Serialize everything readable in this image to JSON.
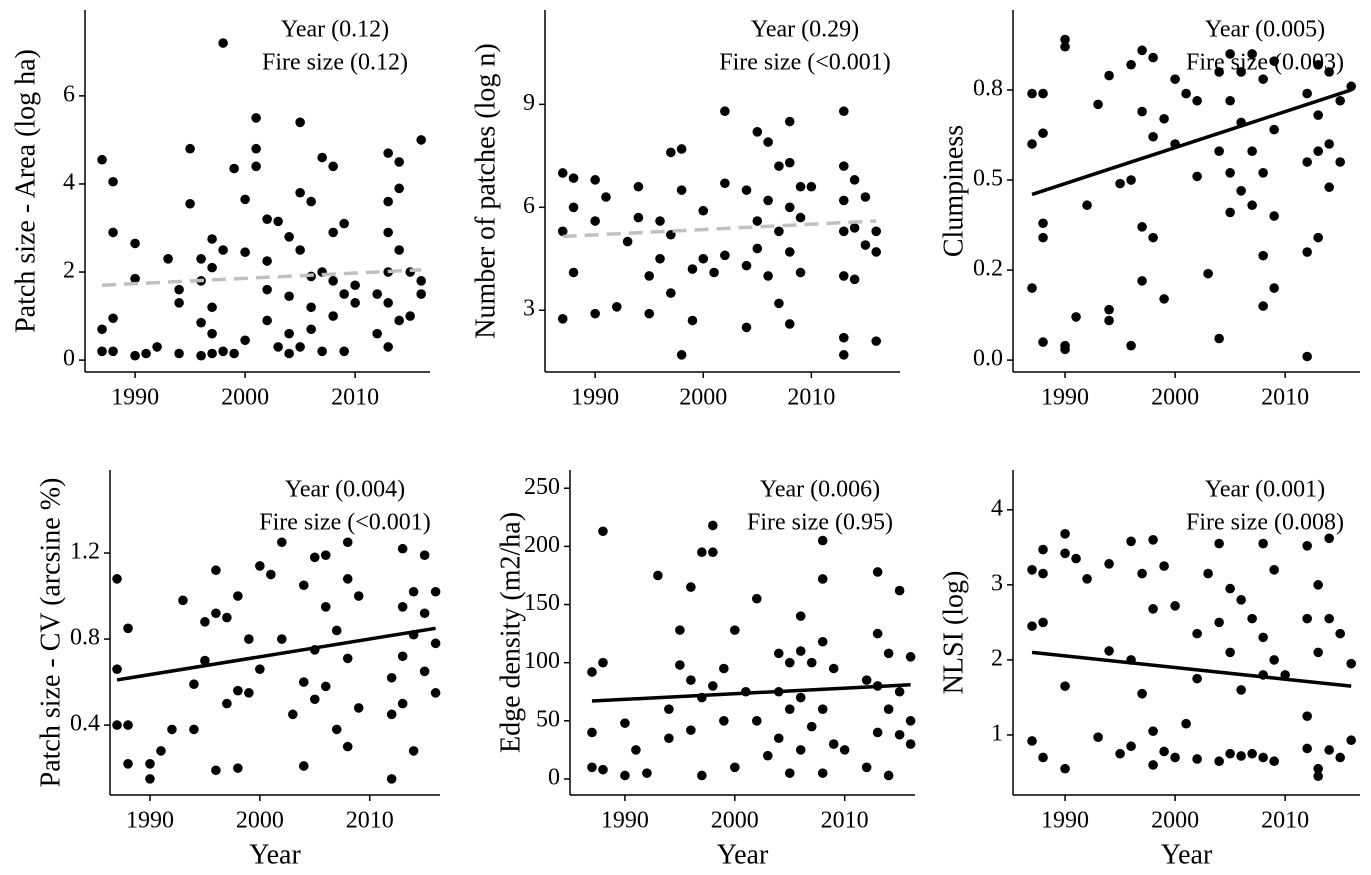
{
  "chart_data": [
    {
      "type": "scatter",
      "ylabel": "Patch size - Area (log ha)",
      "annotations": [
        "Year (0.12)",
        "Fire size (0.12)"
      ],
      "xlim": [
        1985.45,
        2016.8
      ],
      "ylim": [
        -0.27,
        7.95
      ],
      "xticks": [
        1990,
        2000,
        2010
      ],
      "yticks": [
        0,
        2,
        4,
        6
      ],
      "x": [
        1987,
        1987,
        1987,
        1988,
        1988,
        1988,
        1988,
        1990,
        1990,
        1990,
        1991,
        1992,
        1993,
        1994,
        1994,
        1994,
        1995,
        1995,
        1996,
        1996,
        1996,
        1996,
        1997,
        1997,
        1997,
        1997,
        1997,
        1998,
        1998,
        1998,
        1999,
        1999,
        2000,
        2000,
        2000,
        2001,
        2001,
        2001,
        2002,
        2002,
        2002,
        2002,
        2003,
        2003,
        2004,
        2004,
        2004,
        2004,
        2005,
        2005,
        2005,
        2005,
        2006,
        2006,
        2006,
        2006,
        2007,
        2007,
        2007,
        2008,
        2008,
        2008,
        2008,
        2009,
        2009,
        2009,
        2010,
        2010,
        2012,
        2012,
        2013,
        2013,
        2013,
        2013,
        2013,
        2013,
        2014,
        2014,
        2014,
        2014,
        2015,
        2015,
        2016,
        2016,
        2016
      ],
      "series": [
        {
          "color": "#000000",
          "values": [
            4.55,
            0.7,
            0.2,
            4.05,
            2.9,
            0.95,
            0.2,
            2.65,
            1.85,
            0.1,
            0.15,
            0.3,
            2.3,
            1.6,
            1.3,
            0.15,
            4.8,
            3.55,
            2.3,
            1.8,
            0.85,
            0.1,
            2.75,
            2.1,
            1.2,
            0.6,
            0.15,
            7.2,
            2.5,
            0.2,
            4.35,
            0.15,
            3.65,
            2.45,
            0.45,
            5.5,
            4.8,
            4.4,
            3.2,
            2.25,
            1.6,
            0.9,
            3.15,
            0.3,
            2.8,
            1.45,
            0.6,
            0.15,
            5.4,
            3.8,
            2.5,
            0.3,
            3.6,
            1.9,
            1.2,
            0.7,
            4.6,
            2.0,
            0.2,
            4.4,
            2.9,
            1.8,
            1.0,
            3.1,
            1.5,
            0.2,
            1.7,
            1.3,
            1.5,
            0.6,
            4.7,
            3.6,
            2.9,
            2.0,
            1.3,
            0.3,
            4.5,
            3.9,
            2.5,
            0.9,
            2.0,
            1.0,
            5.0,
            1.8,
            1.5
          ]
        }
      ],
      "trend": {
        "x": [
          1987,
          2016
        ],
        "values": [
          1.7,
          2.05
        ],
        "color": "#c0c0c0",
        "dashed": true
      }
    },
    {
      "type": "scatter",
      "ylabel": "Number of patches (log n)",
      "annotations": [
        "Year (0.29)",
        "Fire size (<0.001)"
      ],
      "xlim": [
        1985.36,
        2018.2
      ],
      "ylim": [
        1.2,
        11.75
      ],
      "xticks": [
        1990,
        2000,
        2010
      ],
      "yticks": [
        3,
        6,
        9
      ],
      "x": [
        1987,
        1987,
        1987,
        1988,
        1988,
        1988,
        1990,
        1990,
        1990,
        1991,
        1992,
        1993,
        1994,
        1994,
        1995,
        1995,
        1996,
        1996,
        1997,
        1997,
        1997,
        1998,
        1998,
        1998,
        1999,
        1999,
        2000,
        2000,
        2001,
        2002,
        2002,
        2002,
        2004,
        2004,
        2004,
        2005,
        2005,
        2005,
        2006,
        2006,
        2006,
        2007,
        2007,
        2007,
        2008,
        2008,
        2008,
        2008,
        2008,
        2009,
        2009,
        2009,
        2010,
        2013,
        2013,
        2013,
        2013,
        2013,
        2013,
        2013,
        2014,
        2014,
        2014,
        2015,
        2015,
        2016,
        2016,
        2016
      ],
      "series": [
        {
          "color": "#000000",
          "values": [
            7.0,
            5.3,
            2.75,
            6.85,
            6.0,
            4.1,
            6.8,
            5.6,
            2.9,
            6.3,
            3.1,
            5.0,
            6.6,
            5.7,
            4.0,
            2.9,
            5.6,
            4.5,
            7.6,
            5.2,
            3.5,
            7.7,
            6.5,
            1.7,
            4.2,
            2.7,
            5.9,
            4.5,
            4.1,
            8.8,
            6.7,
            4.6,
            6.5,
            4.3,
            2.5,
            8.2,
            5.6,
            4.8,
            7.9,
            6.2,
            4.0,
            7.2,
            5.3,
            3.2,
            8.5,
            7.3,
            6.0,
            4.7,
            2.6,
            6.6,
            5.7,
            4.1,
            6.6,
            8.8,
            7.2,
            6.2,
            5.3,
            4.0,
            2.2,
            1.7,
            6.8,
            5.4,
            3.9,
            6.3,
            4.9,
            5.3,
            4.7,
            2.1
          ]
        }
      ],
      "trend": {
        "x": [
          1987,
          2016
        ],
        "values": [
          5.15,
          5.6
        ],
        "color": "#c0c0c0",
        "dashed": true
      }
    },
    {
      "type": "scatter",
      "ylabel": "Clumpiness",
      "annotations": [
        "Year (0.005)",
        "Fire size (0.003)"
      ],
      "xlim": [
        1985.27,
        2016.8
      ],
      "ylim": [
        -0.033,
        0.972
      ],
      "xticks": [
        1990,
        2000,
        2010
      ],
      "yticks": [
        {
          "value": 0,
          "label": "0.0"
        },
        {
          "value": 0.25,
          "label": "0.2"
        },
        0.5,
        {
          "value": 0.75,
          "label": "0.8"
        }
      ],
      "x": [
        1987,
        1987,
        1987,
        1988,
        1988,
        1988,
        1988,
        1988,
        1990,
        1990,
        1990,
        1990,
        1991,
        1992,
        1993,
        1994,
        1994,
        1994,
        1995,
        1996,
        1996,
        1996,
        1997,
        1997,
        1997,
        1997,
        1998,
        1998,
        1998,
        1999,
        1999,
        2000,
        2000,
        2001,
        2002,
        2002,
        2003,
        2004,
        2004,
        2004,
        2005,
        2005,
        2005,
        2005,
        2006,
        2006,
        2006,
        2007,
        2007,
        2007,
        2008,
        2008,
        2008,
        2008,
        2009,
        2009,
        2009,
        2009,
        2012,
        2012,
        2012,
        2012,
        2013,
        2013,
        2013,
        2013,
        2014,
        2014,
        2014,
        2015,
        2015,
        2016
      ],
      "series": [
        {
          "color": "#000000",
          "values": [
            0.74,
            0.6,
            0.2,
            0.74,
            0.63,
            0.38,
            0.34,
            0.05,
            0.89,
            0.87,
            0.03,
            0.04,
            0.12,
            0.43,
            0.71,
            0.79,
            0.14,
            0.11,
            0.49,
            0.82,
            0.5,
            0.04,
            0.86,
            0.69,
            0.37,
            0.22,
            0.84,
            0.62,
            0.34,
            0.67,
            0.17,
            0.78,
            0.6,
            0.74,
            0.72,
            0.51,
            0.24,
            0.8,
            0.58,
            0.06,
            0.85,
            0.72,
            0.52,
            0.41,
            0.8,
            0.66,
            0.47,
            0.85,
            0.58,
            0.43,
            0.78,
            0.52,
            0.29,
            0.15,
            0.83,
            0.64,
            0.4,
            0.2,
            0.74,
            0.55,
            0.3,
            0.01,
            0.82,
            0.68,
            0.58,
            0.34,
            0.8,
            0.6,
            0.48,
            0.72,
            0.55,
            0.76
          ]
        }
      ],
      "trend": {
        "x": [
          1987,
          2016
        ],
        "values": [
          0.46,
          0.75
        ],
        "color": "#000000",
        "dashed": false
      }
    },
    {
      "type": "scatter",
      "ylabel": "Patch size - CV (arcsine %)",
      "xlabel": "Year",
      "annotations": [
        "Year (0.004)",
        "Fire size (<0.001)"
      ],
      "xlim": [
        1986.36,
        2016.4
      ],
      "ylim": [
        0.075,
        1.586
      ],
      "xticks": [
        1990,
        2000,
        2010
      ],
      "yticks": [
        0.4,
        0.8,
        1.2
      ],
      "x": [
        1987,
        1987,
        1987,
        1988,
        1988,
        1988,
        1990,
        1990,
        1991,
        1992,
        1993,
        1994,
        1994,
        1995,
        1995,
        1996,
        1996,
        1996,
        1997,
        1997,
        1998,
        1998,
        1998,
        1999,
        1999,
        2000,
        2000,
        2001,
        2002,
        2002,
        2003,
        2004,
        2004,
        2004,
        2005,
        2005,
        2005,
        2006,
        2006,
        2006,
        2007,
        2007,
        2008,
        2008,
        2008,
        2008,
        2009,
        2009,
        2012,
        2012,
        2012,
        2013,
        2013,
        2013,
        2013,
        2014,
        2014,
        2014,
        2015,
        2015,
        2015,
        2016,
        2016,
        2016
      ],
      "series": [
        {
          "color": "#000000",
          "values": [
            1.08,
            0.66,
            0.4,
            0.85,
            0.4,
            0.22,
            0.22,
            0.15,
            0.28,
            0.38,
            0.98,
            0.59,
            0.38,
            0.88,
            0.7,
            1.12,
            0.92,
            0.19,
            0.9,
            0.5,
            1.0,
            0.56,
            0.2,
            0.8,
            0.55,
            1.14,
            0.66,
            1.1,
            1.25,
            0.8,
            0.45,
            1.05,
            0.6,
            0.21,
            1.18,
            0.75,
            0.52,
            1.19,
            0.95,
            0.58,
            0.84,
            0.38,
            1.25,
            1.08,
            0.71,
            0.3,
            1.0,
            0.48,
            0.62,
            0.45,
            0.15,
            1.22,
            0.95,
            0.72,
            0.5,
            1.02,
            0.82,
            0.28,
            1.19,
            0.92,
            0.65,
            1.02,
            0.78,
            0.55
          ]
        }
      ],
      "trend": {
        "x": [
          1987,
          2016
        ],
        "values": [
          0.61,
          0.85
        ],
        "color": "#000000",
        "dashed": false
      }
    },
    {
      "type": "scatter",
      "ylabel": "Edge density (m2/ha)",
      "xlabel": "Year",
      "annotations": [
        "Year (0.006)",
        "Fire size (0.95)"
      ],
      "xlim": [
        1985.0,
        2016.4
      ],
      "ylim": [
        -13.8,
        265.7
      ],
      "xticks": [
        1990,
        2000,
        2010
      ],
      "yticks": [
        0,
        50,
        100,
        150,
        200,
        250
      ],
      "x": [
        1987,
        1987,
        1987,
        1988,
        1988,
        1988,
        1990,
        1990,
        1991,
        1992,
        1993,
        1994,
        1994,
        1995,
        1995,
        1996,
        1996,
        1996,
        1997,
        1997,
        1997,
        1998,
        1998,
        1998,
        1999,
        1999,
        2000,
        2000,
        2001,
        2002,
        2002,
        2003,
        2004,
        2004,
        2004,
        2005,
        2005,
        2005,
        2006,
        2006,
        2006,
        2006,
        2007,
        2007,
        2008,
        2008,
        2008,
        2008,
        2008,
        2009,
        2009,
        2010,
        2012,
        2012,
        2013,
        2013,
        2013,
        2013,
        2014,
        2014,
        2014,
        2015,
        2015,
        2015,
        2016,
        2016,
        2016
      ],
      "series": [
        {
          "color": "#000000",
          "values": [
            92,
            40,
            10,
            213,
            100,
            8,
            48,
            3,
            25,
            5,
            175,
            60,
            35,
            128,
            98,
            165,
            85,
            42,
            195,
            70,
            3,
            218,
            195,
            80,
            95,
            50,
            128,
            10,
            75,
            155,
            50,
            20,
            108,
            75,
            35,
            100,
            60,
            5,
            110,
            140,
            70,
            25,
            100,
            45,
            205,
            172,
            118,
            60,
            5,
            95,
            30,
            25,
            85,
            10,
            178,
            125,
            80,
            40,
            108,
            60,
            3,
            162,
            75,
            38,
            105,
            50,
            30
          ]
        }
      ],
      "trend": {
        "x": [
          1987,
          2016
        ],
        "values": [
          67,
          81
        ],
        "color": "#000000",
        "dashed": false
      }
    },
    {
      "type": "scatter",
      "ylabel": "NLSI (log)",
      "xlabel": "Year",
      "annotations": [
        "Year (0.001)",
        "Fire size (0.008)"
      ],
      "xlim": [
        1985.27,
        2016.8
      ],
      "ylim": [
        0.2,
        4.53
      ],
      "xticks": [
        1990,
        2000,
        2010
      ],
      "yticks": [
        1,
        2,
        3,
        4
      ],
      "x": [
        1987,
        1987,
        1987,
        1988,
        1988,
        1988,
        1988,
        1990,
        1990,
        1990,
        1990,
        1991,
        1992,
        1993,
        1994,
        1994,
        1995,
        1996,
        1996,
        1996,
        1997,
        1997,
        1998,
        1998,
        1998,
        1998,
        1999,
        1999,
        2000,
        2000,
        2001,
        2002,
        2002,
        2002,
        2003,
        2004,
        2004,
        2004,
        2005,
        2005,
        2005,
        2006,
        2006,
        2006,
        2007,
        2007,
        2008,
        2008,
        2008,
        2008,
        2009,
        2009,
        2009,
        2010,
        2012,
        2012,
        2012,
        2012,
        2013,
        2013,
        2013,
        2013,
        2014,
        2014,
        2014,
        2015,
        2015,
        2016,
        2016
      ],
      "series": [
        {
          "color": "#000000",
          "values": [
            3.2,
            2.45,
            0.92,
            3.47,
            3.15,
            2.5,
            0.7,
            3.68,
            3.42,
            1.65,
            0.55,
            3.35,
            3.08,
            0.97,
            3.28,
            2.12,
            0.75,
            3.58,
            2.0,
            0.85,
            3.15,
            1.55,
            3.6,
            2.68,
            1.05,
            0.6,
            3.25,
            0.78,
            2.72,
            0.7,
            1.15,
            2.35,
            1.75,
            0.68,
            3.15,
            3.55,
            2.5,
            0.65,
            2.95,
            2.1,
            0.75,
            2.8,
            1.6,
            0.72,
            2.55,
            0.75,
            3.55,
            2.3,
            1.8,
            0.7,
            3.2,
            2.0,
            0.65,
            1.8,
            3.52,
            2.55,
            1.25,
            0.82,
            3.0,
            2.1,
            0.55,
            0.45,
            3.62,
            2.55,
            0.8,
            2.35,
            0.7,
            1.95,
            0.93
          ]
        }
      ],
      "trend": {
        "x": [
          1987,
          2016
        ],
        "values": [
          2.1,
          1.65
        ],
        "color": "#000000",
        "dashed": false
      }
    }
  ]
}
